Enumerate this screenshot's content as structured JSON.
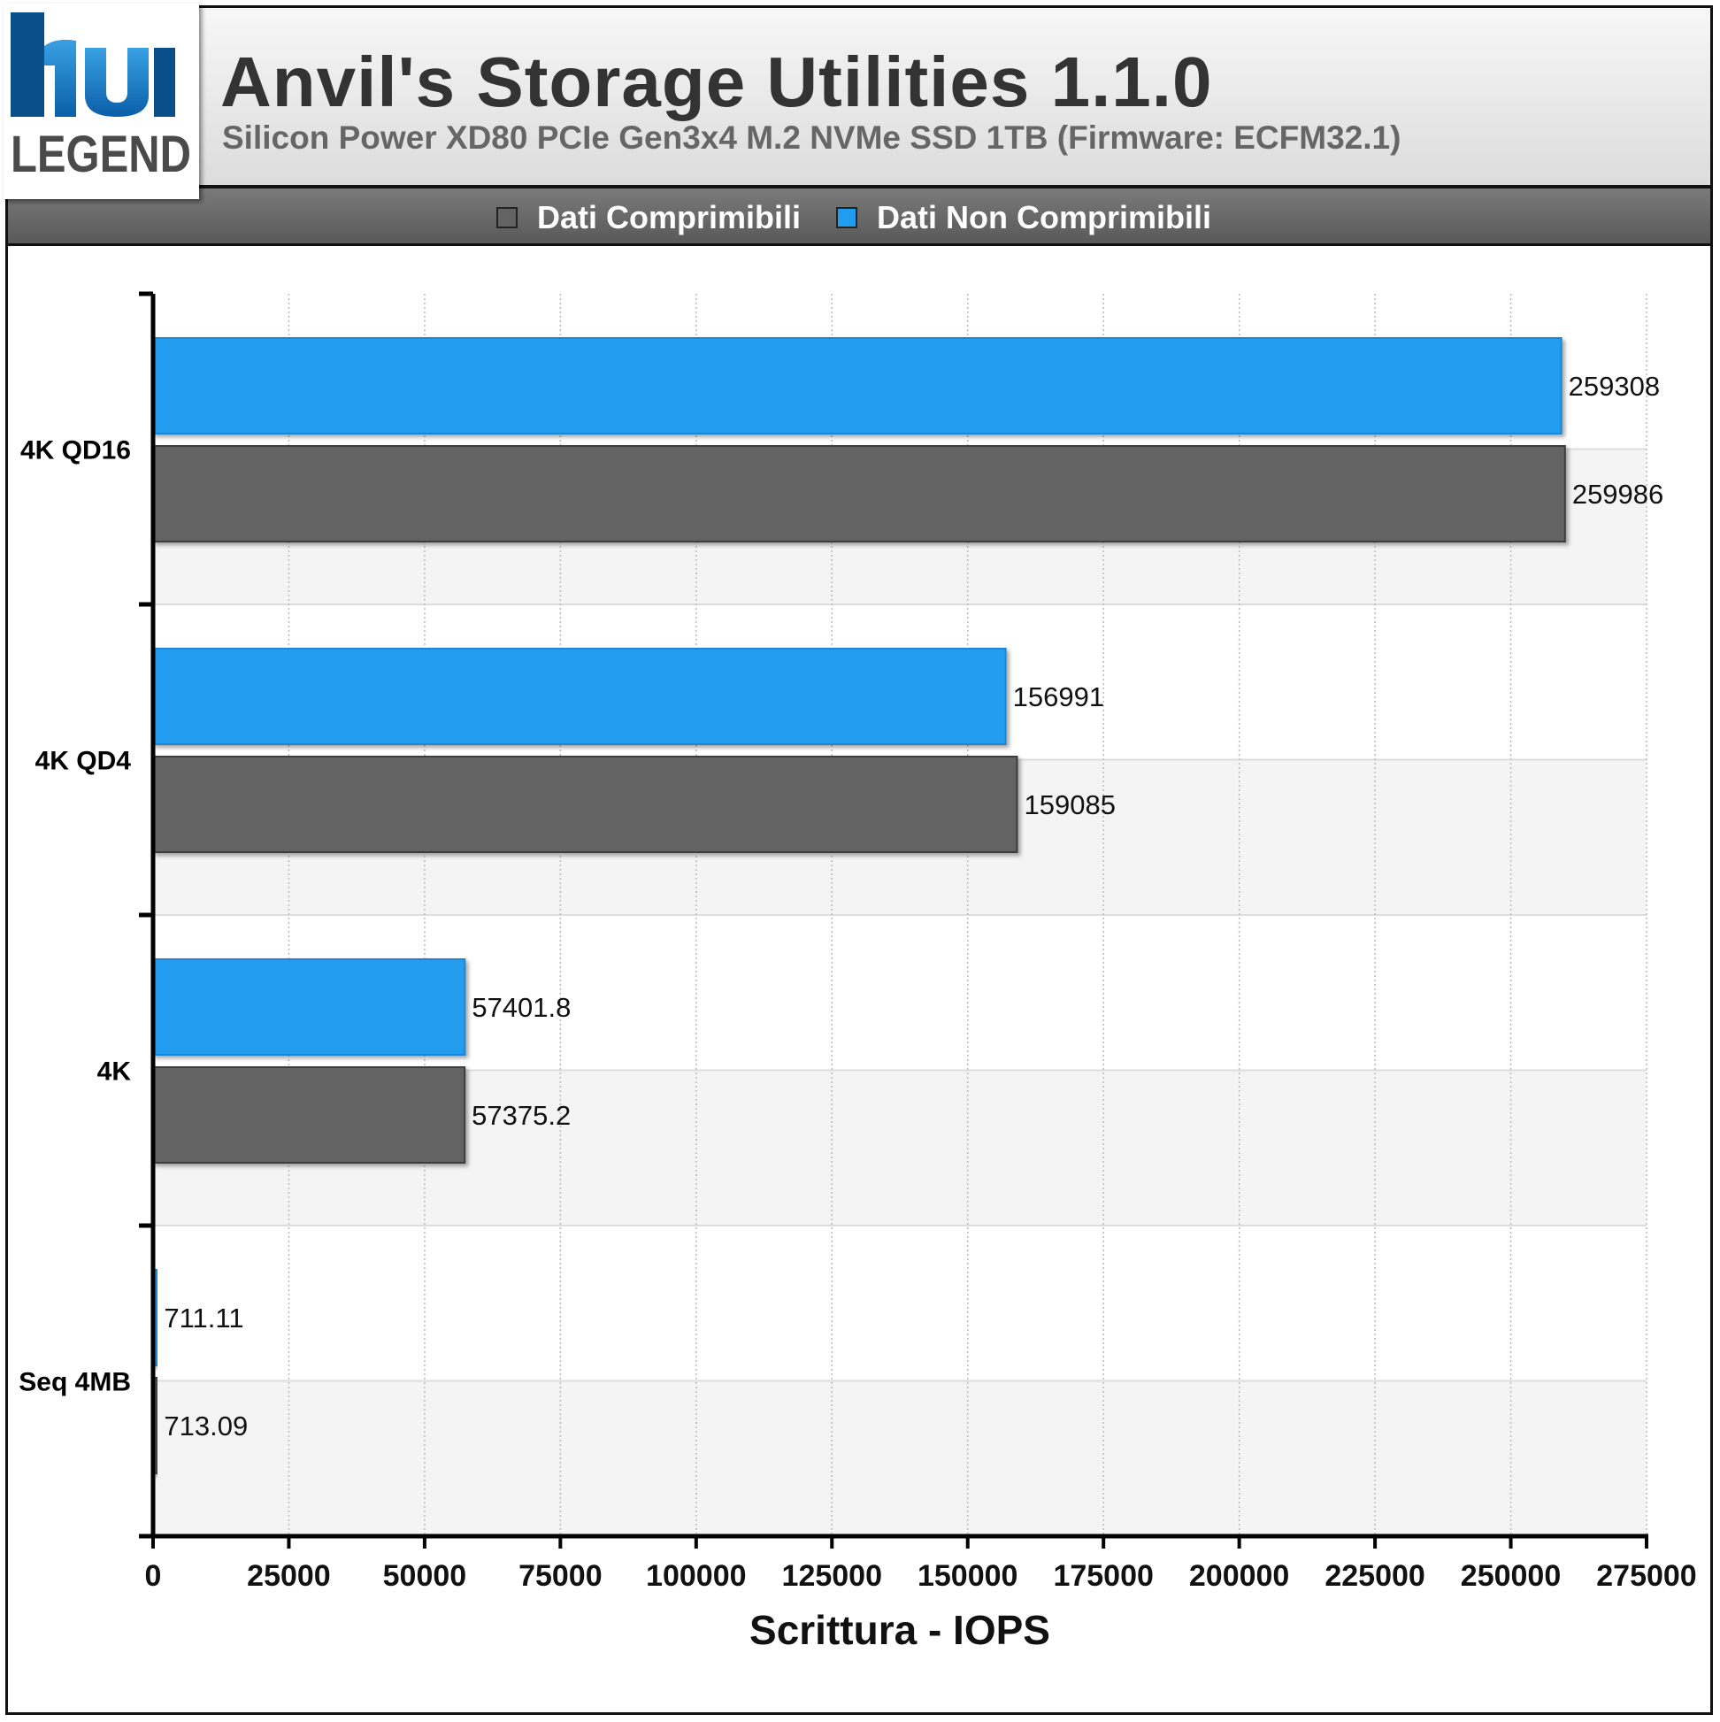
{
  "header": {
    "title": "Anvil's Storage Utilities 1.1.0",
    "subtitle": "Silicon Power XD80 PCIe Gen3x4 M.2 NVMe SSD 1TB (Firmware: ECFM32.1)",
    "logo_text_top": "hu",
    "logo_text_bottom": "LEGEND"
  },
  "colors": {
    "compressible": "#636363",
    "non_compressible": "#219df0",
    "grid": "#bbbbbb",
    "band": "#f4f4f4"
  },
  "chart_data": {
    "type": "bar",
    "orientation": "horizontal",
    "categories": [
      "4K QD16",
      "4K QD4",
      "4K",
      "Seq 4MB"
    ],
    "series": [
      {
        "name": "Dati Non Comprimibili",
        "color": "#219df0",
        "values": [
          259308,
          156991,
          57401.8,
          711.11
        ]
      },
      {
        "name": "Dati Comprimibili",
        "color": "#636363",
        "values": [
          259986,
          159085,
          57375.2,
          713.09
        ]
      }
    ],
    "value_labels": [
      [
        "259308",
        "156991",
        "57401.8",
        "711.11"
      ],
      [
        "259986",
        "159085",
        "57375.2",
        "713.09"
      ]
    ],
    "xlabel": "Scrittura - IOPS",
    "ylabel": "",
    "xlim": [
      0,
      275000
    ],
    "xticks": [
      0,
      25000,
      50000,
      75000,
      100000,
      125000,
      150000,
      175000,
      200000,
      225000,
      250000,
      275000
    ],
    "grid": true,
    "legend_position": "top",
    "legend": [
      "Dati Comprimibili",
      "Dati Non Comprimibili"
    ]
  }
}
